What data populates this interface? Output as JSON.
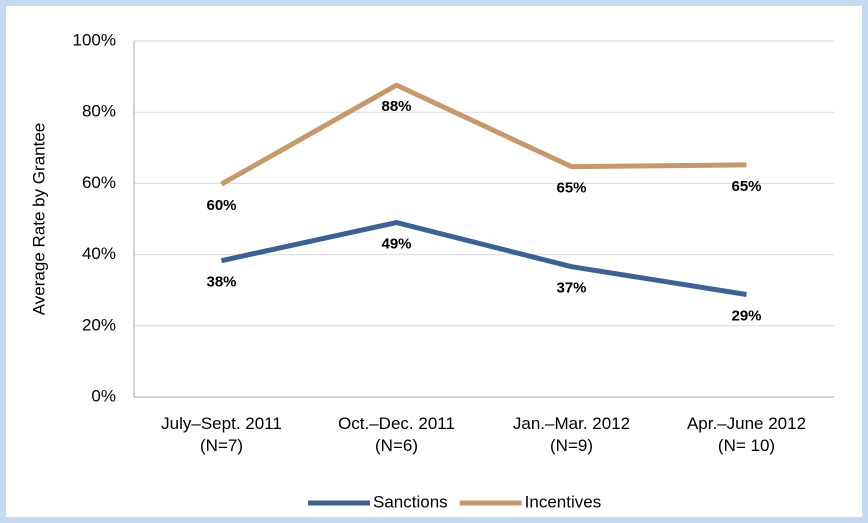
{
  "chart_data": {
    "type": "line",
    "y_label": "Average Rate by Grantee",
    "categories": [
      [
        "July–Sept. 2011",
        "(N=7)"
      ],
      [
        "Oct.–Dec. 2011",
        "(N=6)"
      ],
      [
        "Jan.–Mar. 2012",
        "(N=9)"
      ],
      [
        "Apr.–June 2012",
        "(N= 10)"
      ]
    ],
    "series": [
      {
        "name": "Sanctions",
        "color": "#3b6292",
        "values": [
          38.3,
          49,
          36.6,
          28.8
        ],
        "value_labels": [
          "38%",
          "49%",
          "37%",
          "29%"
        ]
      },
      {
        "name": "Incentives",
        "color": "#c4996b",
        "values": [
          59.8,
          87.6,
          64.7,
          65.2
        ],
        "value_labels": [
          "60%",
          "88%",
          "65%",
          "65%"
        ]
      }
    ],
    "ylim": [
      0,
      100
    ],
    "yticks": [
      {
        "value": 0,
        "label": "0%"
      },
      {
        "value": 20,
        "label": "20%"
      },
      {
        "value": 40,
        "label": "40%"
      },
      {
        "value": 60,
        "label": "60%"
      },
      {
        "value": 80,
        "label": "80%"
      },
      {
        "value": 100,
        "label": "100%"
      }
    ],
    "grid": true,
    "legend": "bottom"
  }
}
